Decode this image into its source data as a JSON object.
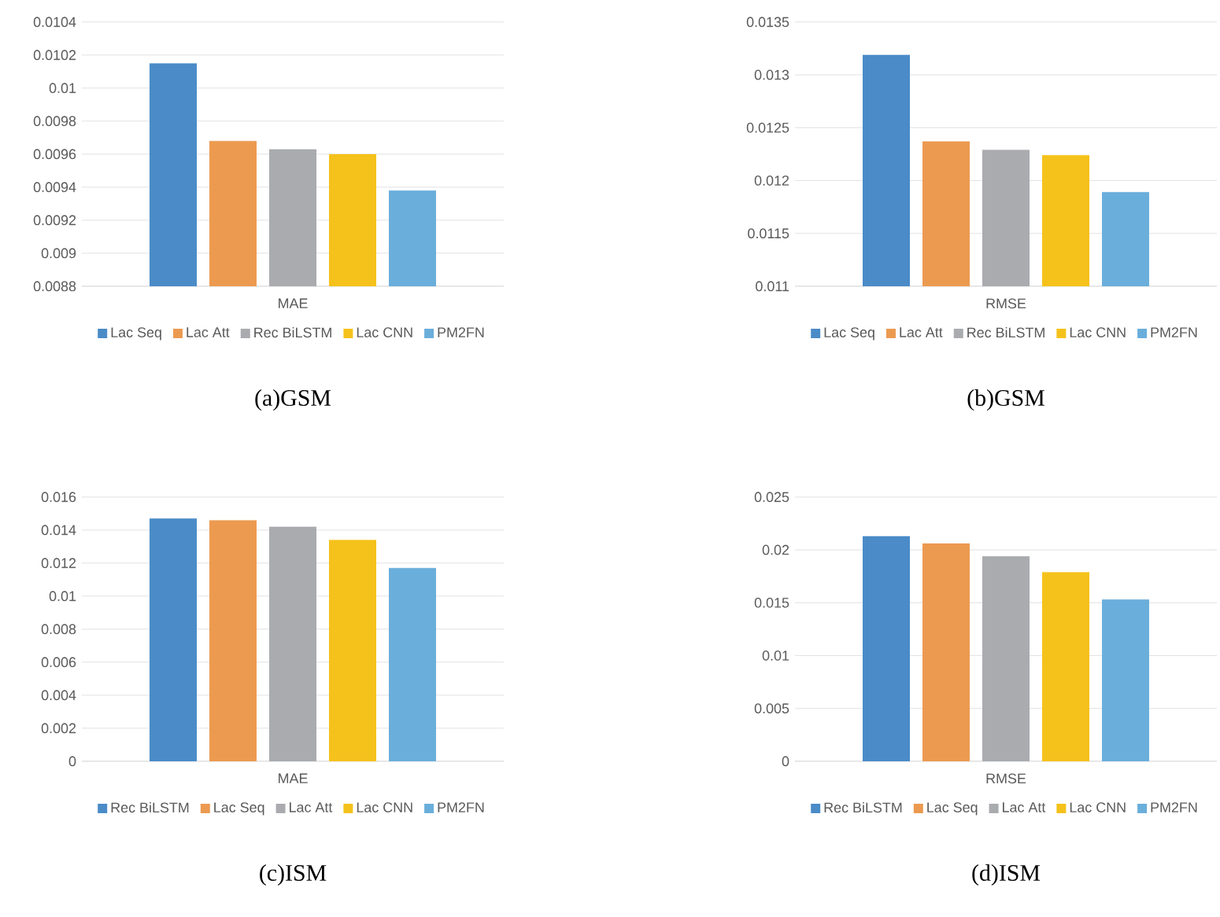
{
  "chart_data": [
    {
      "type": "bar",
      "categories": [
        "MAE"
      ],
      "ylim": [
        0.0088,
        0.0104
      ],
      "yticks": [
        0.0088,
        0.009,
        0.0092,
        0.0094,
        0.0096,
        0.0098,
        0.01,
        0.0102,
        0.0104
      ],
      "grid": "y",
      "legend": "bottom",
      "annotations": [
        "(a)GSM"
      ],
      "series": [
        {
          "name": "Lac Seq",
          "color": "#4a8bc8",
          "values": [
            0.01015
          ]
        },
        {
          "name": "Lac Att",
          "color": "#ec9a50",
          "values": [
            0.00968
          ]
        },
        {
          "name": "Rec BiLSTM",
          "color": "#a9abaf",
          "values": [
            0.00963
          ]
        },
        {
          "name": "Lac CNN",
          "color": "#f5c21b",
          "values": [
            0.0096
          ]
        },
        {
          "name": "PM2FN",
          "color": "#6aaedb",
          "values": [
            0.00938
          ]
        }
      ]
    },
    {
      "type": "bar",
      "categories": [
        "RMSE"
      ],
      "ylim": [
        0.011,
        0.0135
      ],
      "yticks": [
        0.011,
        0.0115,
        0.012,
        0.0125,
        0.013,
        0.0135
      ],
      "grid": "y",
      "legend": "bottom",
      "annotations": [
        "(b)GSM"
      ],
      "series": [
        {
          "name": "Lac Seq",
          "color": "#4a8bc8",
          "values": [
            0.01319
          ]
        },
        {
          "name": "Lac Att",
          "color": "#ec9a50",
          "values": [
            0.01237
          ]
        },
        {
          "name": "Rec BiLSTM",
          "color": "#a9abaf",
          "values": [
            0.01229
          ]
        },
        {
          "name": "Lac CNN",
          "color": "#f5c21b",
          "values": [
            0.01224
          ]
        },
        {
          "name": "PM2FN",
          "color": "#6aaedb",
          "values": [
            0.01189
          ]
        }
      ]
    },
    {
      "type": "bar",
      "categories": [
        "MAE"
      ],
      "ylim": [
        0,
        0.016
      ],
      "yticks": [
        0,
        0.002,
        0.004,
        0.006,
        0.008,
        0.01,
        0.012,
        0.014,
        0.016
      ],
      "grid": "y",
      "legend": "bottom",
      "annotations": [
        "(c)ISM"
      ],
      "series": [
        {
          "name": "Rec BiLSTM",
          "color": "#4a8bc8",
          "values": [
            0.0147
          ]
        },
        {
          "name": "Lac Seq",
          "color": "#ec9a50",
          "values": [
            0.0146
          ]
        },
        {
          "name": "Lac Att",
          "color": "#a9abaf",
          "values": [
            0.0142
          ]
        },
        {
          "name": "Lac CNN",
          "color": "#f5c21b",
          "values": [
            0.0134
          ]
        },
        {
          "name": "PM2FN",
          "color": "#6aaedb",
          "values": [
            0.0117
          ]
        }
      ]
    },
    {
      "type": "bar",
      "categories": [
        "RMSE"
      ],
      "ylim": [
        0,
        0.025
      ],
      "yticks": [
        0,
        0.005,
        0.01,
        0.015,
        0.02,
        0.025
      ],
      "grid": "y",
      "legend": "bottom",
      "annotations": [
        "(d)ISM"
      ],
      "series": [
        {
          "name": "Rec BiLSTM",
          "color": "#4a8bc8",
          "values": [
            0.0213
          ]
        },
        {
          "name": "Lac Seq",
          "color": "#ec9a50",
          "values": [
            0.0206
          ]
        },
        {
          "name": "Lac Att",
          "color": "#a9abaf",
          "values": [
            0.0194
          ]
        },
        {
          "name": "Lac CNN",
          "color": "#f5c21b",
          "values": [
            0.0179
          ]
        },
        {
          "name": "PM2FN",
          "color": "#6aaedb",
          "values": [
            0.0153
          ]
        }
      ]
    }
  ]
}
